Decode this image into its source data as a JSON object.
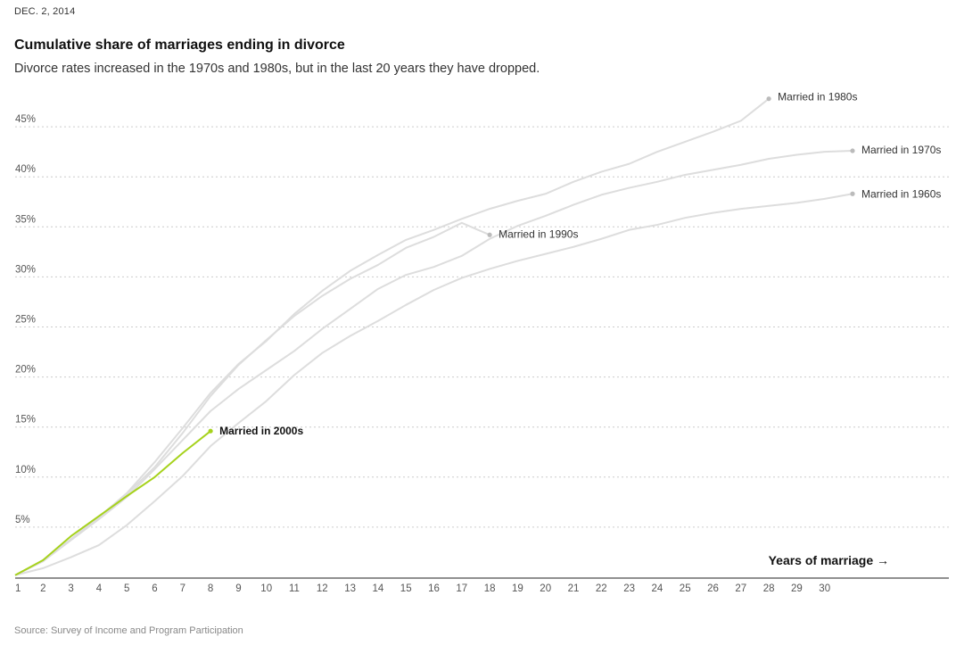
{
  "dateline": "DEC. 2, 2014",
  "title": "Cumulative share of marriages ending in divorce",
  "subtitle": "Divorce rates increased in the 1970s and 1980s, but in the last 20 years they have dropped.",
  "source": "Source: Survey of Income and Program Participation",
  "colors": {
    "highlight": "#a6d21c",
    "muted": "#dddddd",
    "grid": "#cccccc",
    "axis": "#222222"
  },
  "chart_data": {
    "type": "line",
    "xlabel": "Years of marriage →",
    "ylabel": "",
    "xlim": [
      1,
      33
    ],
    "ylim": [
      0,
      48
    ],
    "x_ticks": [
      1,
      2,
      3,
      4,
      5,
      6,
      7,
      8,
      9,
      10,
      11,
      12,
      13,
      14,
      15,
      16,
      17,
      18,
      19,
      20,
      21,
      22,
      23,
      24,
      25,
      26,
      27,
      28,
      29,
      30
    ],
    "y_ticks": [
      {
        "value": 5,
        "label": "5%"
      },
      {
        "value": 10,
        "label": "10%"
      },
      {
        "value": 15,
        "label": "15%"
      },
      {
        "value": 20,
        "label": "20%"
      },
      {
        "value": 25,
        "label": "25%"
      },
      {
        "value": 30,
        "label": "30%"
      },
      {
        "value": 35,
        "label": "35%"
      },
      {
        "value": 40,
        "label": "40%"
      },
      {
        "value": 45,
        "label": "45%"
      }
    ],
    "grid": true,
    "series": [
      {
        "name": "Married in 1960s",
        "highlight": false,
        "x": [
          1,
          2,
          3,
          4,
          5,
          6,
          7,
          8,
          9,
          10,
          11,
          12,
          13,
          14,
          15,
          16,
          17,
          18,
          19,
          20,
          21,
          22,
          23,
          24,
          25,
          26,
          27,
          28,
          29,
          30,
          31
        ],
        "values": [
          0.2,
          0.9,
          2.0,
          3.2,
          5.2,
          7.6,
          10.1,
          13.1,
          15.4,
          17.6,
          20.2,
          22.4,
          24.1,
          25.6,
          27.2,
          28.7,
          29.9,
          30.8,
          31.6,
          32.3,
          33.0,
          33.8,
          34.7,
          35.2,
          35.9,
          36.4,
          36.8,
          37.1,
          37.4,
          37.8,
          38.3
        ]
      },
      {
        "name": "Married in 1970s",
        "highlight": false,
        "x": [
          1,
          2,
          3,
          4,
          5,
          6,
          7,
          8,
          9,
          10,
          11,
          12,
          13,
          14,
          15,
          16,
          17,
          18,
          19,
          20,
          21,
          22,
          23,
          24,
          25,
          26,
          27,
          28,
          29,
          30,
          31
        ],
        "values": [
          0.2,
          1.6,
          3.7,
          5.8,
          8.0,
          10.8,
          13.7,
          16.6,
          18.8,
          20.7,
          22.6,
          24.8,
          26.8,
          28.8,
          30.2,
          31.0,
          32.1,
          33.8,
          35.1,
          36.1,
          37.2,
          38.2,
          38.9,
          39.5,
          40.2,
          40.7,
          41.2,
          41.8,
          42.2,
          42.5,
          42.6
        ]
      },
      {
        "name": "Married in 1980s",
        "highlight": false,
        "x": [
          1,
          2,
          3,
          4,
          5,
          6,
          7,
          8,
          9,
          10,
          11,
          12,
          13,
          14,
          15,
          16,
          17,
          18,
          19,
          20,
          21,
          22,
          23,
          24,
          25,
          26,
          27,
          28
        ],
        "values": [
          0.2,
          1.6,
          3.8,
          6.0,
          8.4,
          11.5,
          14.9,
          18.4,
          21.3,
          23.6,
          26.3,
          28.6,
          30.6,
          32.2,
          33.7,
          34.7,
          35.8,
          36.8,
          37.6,
          38.3,
          39.5,
          40.5,
          41.3,
          42.5,
          43.5,
          44.5,
          45.6,
          47.8
        ]
      },
      {
        "name": "Married in 1990s",
        "highlight": false,
        "x": [
          1,
          2,
          3,
          4,
          5,
          6,
          7,
          8,
          9,
          10,
          11,
          12,
          13,
          14,
          15,
          16,
          17,
          18
        ],
        "values": [
          0.2,
          1.6,
          3.8,
          6.0,
          8.3,
          11.0,
          14.4,
          18.1,
          21.2,
          23.7,
          26.1,
          28.1,
          29.8,
          31.2,
          32.9,
          34.0,
          35.4,
          34.2
        ]
      },
      {
        "name": "Married in 2000s",
        "highlight": true,
        "x": [
          1,
          2,
          3,
          4,
          5,
          6,
          7,
          8
        ],
        "values": [
          0.2,
          1.7,
          4.1,
          6.1,
          8.1,
          10.0,
          12.4,
          14.6
        ]
      }
    ]
  }
}
